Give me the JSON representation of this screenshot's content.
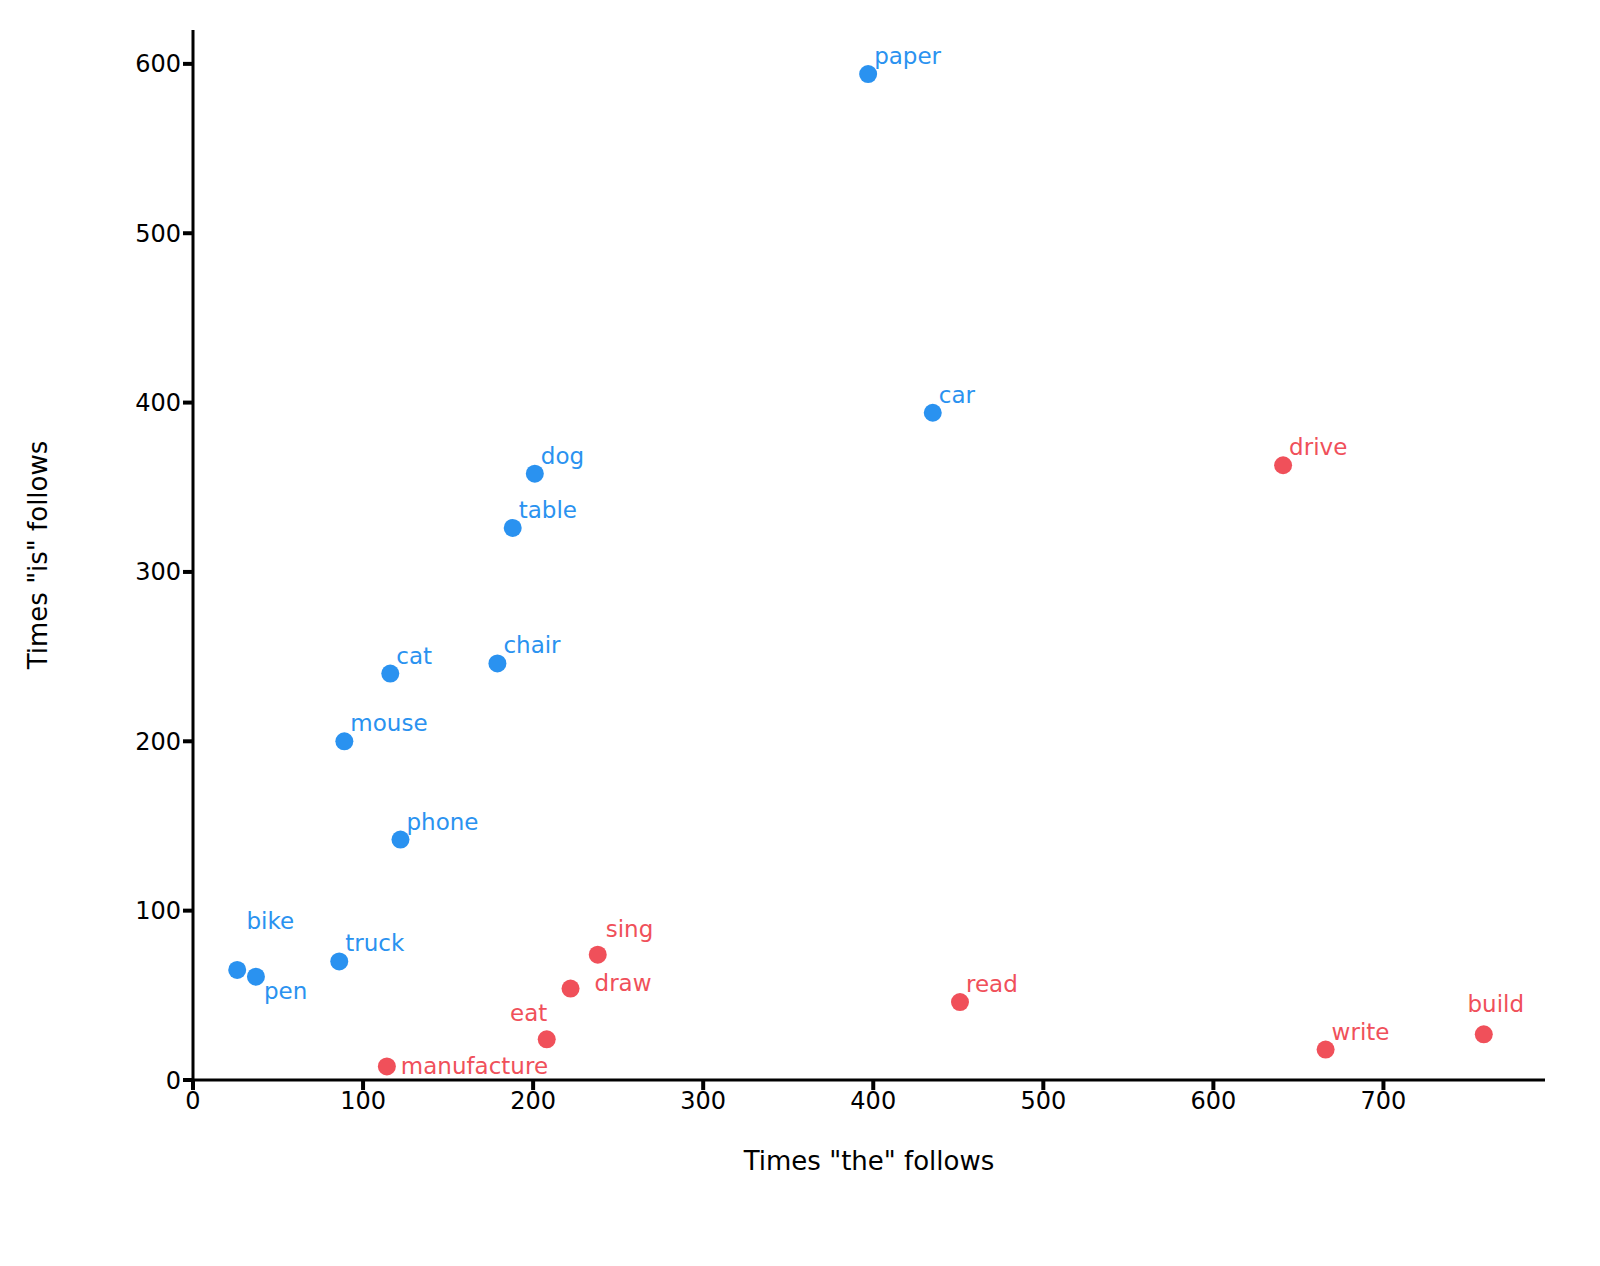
{
  "chart_data": {
    "type": "scatter",
    "x_label": "Times \"the\" follows",
    "y_label": "Times \"is\" follows",
    "xlim": [
      0,
      795
    ],
    "ylim": [
      0,
      620
    ],
    "xticks": [
      0,
      100,
      200,
      300,
      400,
      500,
      600,
      700
    ],
    "yticks": [
      0,
      100,
      200,
      300,
      400,
      500,
      600
    ],
    "labels": [
      "paper",
      "car",
      "dog",
      "table",
      "chair",
      "cat",
      "mouse",
      "phone",
      "bike",
      "pen",
      "truck",
      "drive",
      "sing",
      "draw",
      "eat",
      "manufacture",
      "read",
      "write",
      "build"
    ],
    "x": [
      397,
      435,
      201,
      188,
      179,
      116,
      89,
      122,
      26,
      37,
      86,
      641,
      238,
      222,
      208,
      114,
      451,
      666,
      759
    ],
    "values": [
      594,
      394,
      358,
      326,
      246,
      240,
      200,
      142,
      65,
      61,
      70,
      363,
      74,
      54,
      24,
      8,
      46,
      18,
      27
    ],
    "colors": [
      "#2a92f0",
      "#2a92f0",
      "#2a92f0",
      "#2a92f0",
      "#2a92f0",
      "#2a92f0",
      "#2a92f0",
      "#2a92f0",
      "#2a92f0",
      "#2a92f0",
      "#2a92f0",
      "#f0505a",
      "#f0505a",
      "#f0505a",
      "#f0505a",
      "#f0505a",
      "#f0505a",
      "#f0505a",
      "#f0505a"
    ]
  }
}
